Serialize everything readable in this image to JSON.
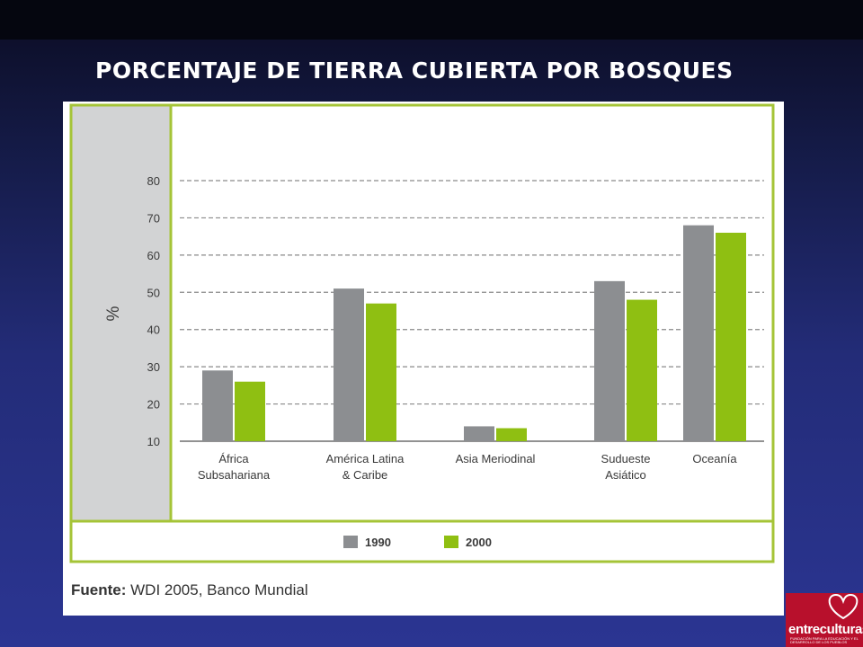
{
  "slide": {
    "title": "PORCENTAJE DE TIERRA CUBIERTA POR BOSQUES"
  },
  "chart_data": {
    "type": "bar",
    "title": "",
    "ylabel": "%",
    "xlabel": "",
    "ylim": [
      10,
      80
    ],
    "yticks": [
      10,
      20,
      30,
      40,
      50,
      60,
      70,
      80
    ],
    "grid": true,
    "categories": [
      [
        "África",
        "Subsahariana"
      ],
      [
        "América Latina",
        "& Caribe"
      ],
      [
        "Asia Meriodinal"
      ],
      [
        "Sudueste",
        "Asiático"
      ],
      [
        "Oceanía"
      ]
    ],
    "series": [
      {
        "name": "1990",
        "color": "#8c8e91",
        "values": [
          29,
          51,
          14,
          53,
          68
        ]
      },
      {
        "name": "2000",
        "color": "#8fbf12",
        "values": [
          26,
          47,
          13.5,
          48,
          66
        ]
      }
    ],
    "legend_position": "bottom",
    "source_label": "Fuente:",
    "source_text": "WDI 2005, Banco Mundial"
  },
  "logo": {
    "name": "entreculturas",
    "tagline": "FUNDACIÓN PARA LA EDUCACIÓN Y EL DESARROLLO DE LOS PUEBLOS",
    "color": "#b8102c"
  }
}
